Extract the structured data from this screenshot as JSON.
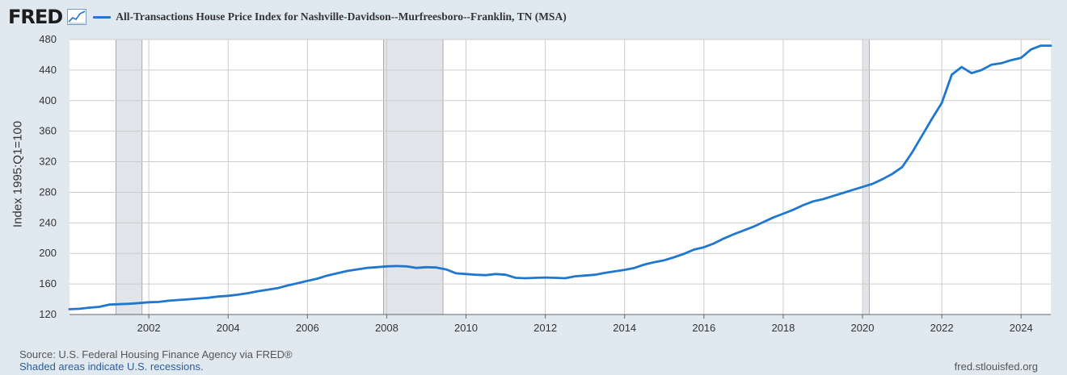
{
  "header": {
    "logo_text": "FRED",
    "logo_icon": "line-chart-icon",
    "series_label": "All-Transactions House Price Index for Nashville-Davidson--Murfreesboro--Franklin, TN (MSA)"
  },
  "footer": {
    "source": "Source: U.S. Federal Housing Finance Agency via FRED®",
    "recession_note": "Shaded areas indicate U.S. recessions.",
    "url": "fred.stlouisfed.org"
  },
  "colors": {
    "series": "#1f77d0",
    "recession": "#e1e4e8",
    "background": "#e1e9f0",
    "plot_background": "#ffffff",
    "grid": "#cccccc"
  },
  "chart_data": {
    "type": "line",
    "title": "All-Transactions House Price Index for Nashville-Davidson--Murfreesboro--Franklin, TN (MSA)",
    "xlabel": "",
    "ylabel": "Index 1995:Q1=100",
    "xlim": [
      2000.0,
      2024.75
    ],
    "ylim": [
      120,
      480
    ],
    "yticks": [
      120,
      160,
      200,
      240,
      280,
      320,
      360,
      400,
      440,
      480
    ],
    "xticks": [
      2002,
      2004,
      2006,
      2008,
      2010,
      2012,
      2014,
      2016,
      2018,
      2020,
      2022,
      2024
    ],
    "grid": true,
    "legend": "top-left",
    "recessions": [
      {
        "start": 2001.17,
        "end": 2001.83
      },
      {
        "start": 2007.92,
        "end": 2009.42
      },
      {
        "start": 2020.0,
        "end": 2020.17
      }
    ],
    "series": [
      {
        "name": "All-Transactions House Price Index for Nashville-Davidson--Murfreesboro--Franklin, TN (MSA)",
        "x": [
          2000.0,
          2000.25,
          2000.5,
          2000.75,
          2001.0,
          2001.25,
          2001.5,
          2001.75,
          2002.0,
          2002.25,
          2002.5,
          2002.75,
          2003.0,
          2003.25,
          2003.5,
          2003.75,
          2004.0,
          2004.25,
          2004.5,
          2004.75,
          2005.0,
          2005.25,
          2005.5,
          2005.75,
          2006.0,
          2006.25,
          2006.5,
          2006.75,
          2007.0,
          2007.25,
          2007.5,
          2007.75,
          2008.0,
          2008.25,
          2008.5,
          2008.75,
          2009.0,
          2009.25,
          2009.5,
          2009.75,
          2010.0,
          2010.25,
          2010.5,
          2010.75,
          2011.0,
          2011.25,
          2011.5,
          2011.75,
          2012.0,
          2012.25,
          2012.5,
          2012.75,
          2013.0,
          2013.25,
          2013.5,
          2013.75,
          2014.0,
          2014.25,
          2014.5,
          2014.75,
          2015.0,
          2015.25,
          2015.5,
          2015.75,
          2016.0,
          2016.25,
          2016.5,
          2016.75,
          2017.0,
          2017.25,
          2017.5,
          2017.75,
          2018.0,
          2018.25,
          2018.5,
          2018.75,
          2019.0,
          2019.25,
          2019.5,
          2019.75,
          2020.0,
          2020.25,
          2020.5,
          2020.75,
          2021.0,
          2021.25,
          2021.5,
          2021.75,
          2022.0,
          2022.25,
          2022.5,
          2022.75,
          2023.0,
          2023.25,
          2023.5,
          2023.75,
          2024.0,
          2024.25,
          2024.5,
          2024.75
        ],
        "values": [
          127,
          127.5,
          129,
          130,
          133,
          133.5,
          134,
          135,
          136,
          136.5,
          138,
          139,
          140,
          141,
          142,
          143.5,
          144.5,
          146,
          148,
          150.5,
          152.5,
          154.5,
          158,
          161,
          164,
          167,
          171,
          174,
          177,
          179,
          181,
          182,
          183,
          183.5,
          183,
          181,
          182,
          181.5,
          179,
          174,
          173,
          172,
          171.5,
          173,
          172,
          168,
          167.5,
          168,
          168.5,
          168,
          167.5,
          170,
          171,
          172,
          174.5,
          176.5,
          178.5,
          181,
          185.5,
          188.5,
          191,
          195,
          199.5,
          205,
          208,
          213,
          219.5,
          225,
          230,
          235,
          241,
          247,
          252,
          257,
          263,
          268,
          271,
          275,
          279,
          283,
          287,
          291,
          297,
          304,
          313,
          332,
          354,
          376,
          397,
          434,
          444,
          436,
          440,
          447,
          449,
          453,
          456,
          467,
          472,
          472
        ]
      }
    ]
  }
}
